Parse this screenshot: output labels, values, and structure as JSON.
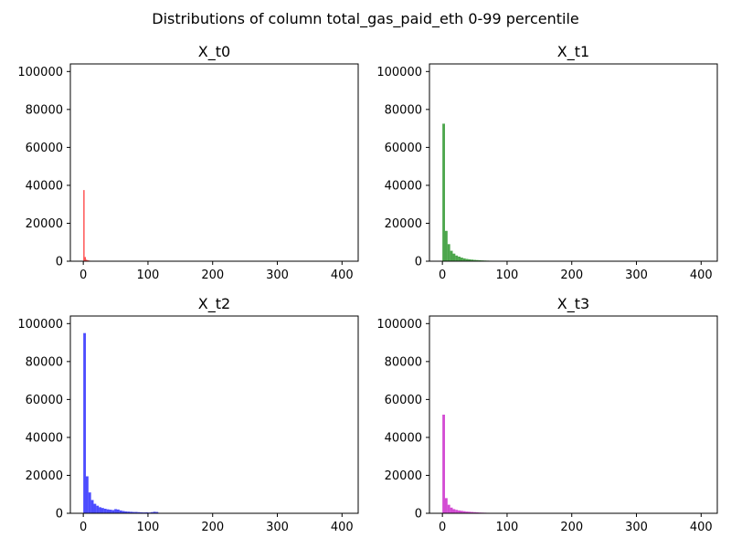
{
  "figure": {
    "suptitle": "Distributions of column total_gas_paid_eth 0-99 percentile"
  },
  "chart_data": [
    {
      "type": "bar",
      "title": "X_t0",
      "color": "#ff0000",
      "bar_width": 2,
      "x": [
        0,
        2,
        4,
        6,
        8,
        10,
        12,
        14,
        16,
        18,
        20,
        22,
        24,
        26,
        28,
        30,
        32,
        34,
        36,
        38
      ],
      "values": [
        37500,
        2200,
        800,
        500,
        350,
        250,
        200,
        150,
        120,
        100,
        80,
        70,
        60,
        50,
        40,
        30,
        25,
        20,
        15,
        10
      ],
      "xlim": [
        -20,
        425
      ],
      "ylim": [
        0,
        104000
      ],
      "xticks": [
        0,
        100,
        200,
        300,
        400
      ],
      "yticks": [
        0,
        20000,
        40000,
        60000,
        80000,
        100000
      ]
    },
    {
      "type": "bar",
      "title": "X_t1",
      "color": "#008000",
      "bar_width": 4,
      "x": [
        0,
        4,
        8,
        12,
        16,
        20,
        24,
        28,
        32,
        36,
        40,
        44,
        48,
        52,
        56,
        60,
        64,
        68,
        72,
        76,
        80
      ],
      "values": [
        72500,
        16000,
        9000,
        5500,
        4000,
        3000,
        2400,
        1900,
        1500,
        1200,
        1000,
        850,
        700,
        600,
        500,
        420,
        350,
        300,
        250,
        150,
        80
      ],
      "xlim": [
        -20,
        425
      ],
      "ylim": [
        0,
        104000
      ],
      "xticks": [
        0,
        100,
        200,
        300,
        400
      ],
      "yticks": [
        0,
        20000,
        40000,
        60000,
        80000,
        100000
      ]
    },
    {
      "type": "bar",
      "title": "X_t2",
      "color": "#0000ff",
      "bar_width": 4,
      "x": [
        0,
        4,
        8,
        12,
        16,
        20,
        24,
        28,
        32,
        36,
        40,
        44,
        48,
        52,
        56,
        60,
        64,
        68,
        72,
        76,
        80,
        84,
        88,
        92,
        96,
        100,
        104,
        108,
        112,
        116
      ],
      "values": [
        95000,
        19500,
        11000,
        7000,
        5000,
        4000,
        3200,
        2800,
        2400,
        2100,
        1900,
        1700,
        2200,
        2000,
        1500,
        1200,
        1000,
        900,
        800,
        700,
        700,
        600,
        500,
        450,
        500,
        400,
        600,
        800,
        700,
        200
      ],
      "xlim": [
        -20,
        425
      ],
      "ylim": [
        0,
        104000
      ],
      "xticks": [
        0,
        100,
        200,
        300,
        400
      ],
      "yticks": [
        0,
        20000,
        40000,
        60000,
        80000,
        100000
      ]
    },
    {
      "type": "bar",
      "title": "X_t3",
      "color": "#c000c0",
      "bar_width": 4,
      "x": [
        0,
        4,
        8,
        12,
        16,
        20,
        24,
        28,
        32,
        36,
        40,
        44,
        48,
        52,
        56,
        60,
        64,
        68,
        72
      ],
      "values": [
        52000,
        8000,
        4500,
        3000,
        2200,
        1800,
        1500,
        1300,
        1100,
        900,
        800,
        700,
        600,
        500,
        400,
        350,
        300,
        250,
        200
      ],
      "xlim": [
        -20,
        425
      ],
      "ylim": [
        0,
        104000
      ],
      "xticks": [
        0,
        100,
        200,
        300,
        400
      ],
      "yticks": [
        0,
        20000,
        40000,
        60000,
        80000,
        100000
      ]
    }
  ]
}
